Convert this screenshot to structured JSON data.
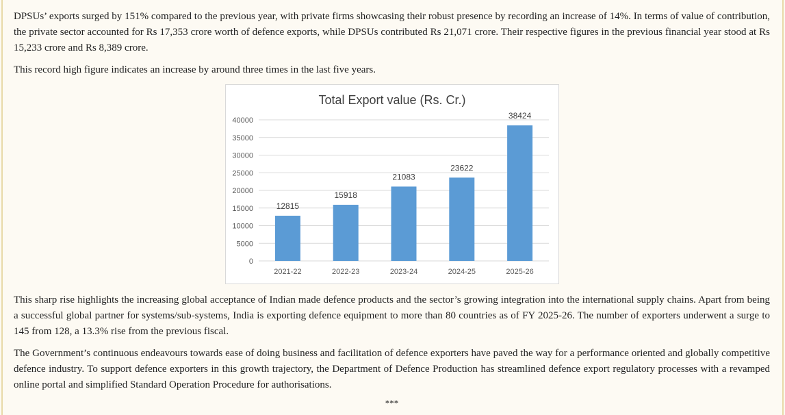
{
  "paragraphs": [
    "DPSUs’ exports surged by 151% compared to the previous year, with private firms showcasing their robust presence by recording an increase of 14%. In terms of value of contribution, the private sector accounted for Rs 17,353 crore worth of defence exports, while DPSUs contributed Rs 21,071 crore. Their respective figures in the previous financial year stood at Rs 15,233 crore and Rs 8,389 crore.",
    "This record high figure indicates an increase by around three times in the last five years.",
    "This sharp rise highlights the increasing global acceptance of Indian made defence products and the sector’s growing integration into the international supply chains. Apart from being a successful global partner for systems/sub-systems, India is exporting defence equipment to more than 80 countries as of FY 2025-26. The number of exporters underwent a surge to 145 from 128, a 13.3% rise from the previous fiscal.",
    "The Government’s continuous endeavours towards ease of doing business and facilitation of defence exporters have paved the way for a performance oriented and globally competitive defence industry. To support defence exporters in this growth trajectory, the Department of Defence Production has streamlined defence export regulatory processes with a revamped online portal and simplified Standard Operation Procedure for authorisations."
  ],
  "closing_mark": "***",
  "chart_data": {
    "type": "bar",
    "title": "Total Export value (Rs. Cr.)",
    "categories": [
      "2021-22",
      "2022-23",
      "2023-24",
      "2024-25",
      "2025-26"
    ],
    "values": [
      12815,
      15918,
      21083,
      23622,
      38424
    ],
    "yticks": [
      0,
      5000,
      10000,
      15000,
      20000,
      25000,
      30000,
      35000,
      40000
    ],
    "ylim": [
      0,
      40000
    ],
    "xlabel": "",
    "ylabel": "",
    "grid": true,
    "bar_color": "#5b9bd5",
    "grid_color": "#d9d9d9"
  }
}
